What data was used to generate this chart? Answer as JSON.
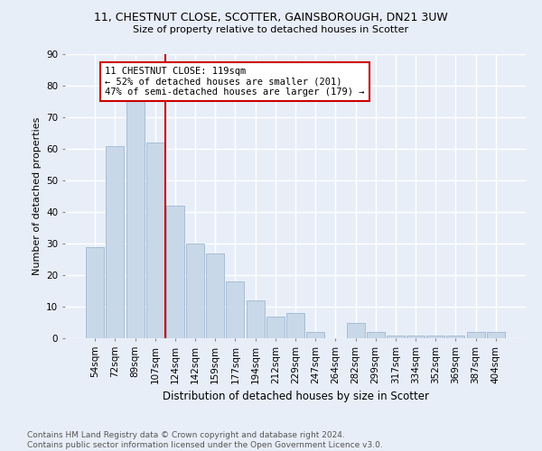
{
  "title1": "11, CHESTNUT CLOSE, SCOTTER, GAINSBOROUGH, DN21 3UW",
  "title2": "Size of property relative to detached houses in Scotter",
  "xlabel": "Distribution of detached houses by size in Scotter",
  "ylabel": "Number of detached properties",
  "categories": [
    "54sqm",
    "72sqm",
    "89sqm",
    "107sqm",
    "124sqm",
    "142sqm",
    "159sqm",
    "177sqm",
    "194sqm",
    "212sqm",
    "229sqm",
    "247sqm",
    "264sqm",
    "282sqm",
    "299sqm",
    "317sqm",
    "334sqm",
    "352sqm",
    "369sqm",
    "387sqm",
    "404sqm"
  ],
  "values": [
    29,
    61,
    76,
    62,
    42,
    30,
    27,
    18,
    12,
    7,
    8,
    2,
    0,
    5,
    2,
    1,
    1,
    1,
    1,
    2,
    2
  ],
  "bar_color": "#c8d8e8",
  "bar_edgecolor": "#a0b8d0",
  "vline_x_index": 4.0,
  "vline_color": "#cc0000",
  "annotation_line1": "11 CHESTNUT CLOSE: 119sqm",
  "annotation_line2": "← 52% of detached houses are smaller (201)",
  "annotation_line3": "47% of semi-detached houses are larger (179) →",
  "annotation_box_color": "#ffffff",
  "annotation_box_edgecolor": "#cc0000",
  "ylim": [
    0,
    90
  ],
  "yticks": [
    0,
    10,
    20,
    30,
    40,
    50,
    60,
    70,
    80,
    90
  ],
  "footer": "Contains HM Land Registry data © Crown copyright and database right 2024.\nContains public sector information licensed under the Open Government Licence v3.0.",
  "bg_color": "#e8eef8",
  "grid_color": "#ffffff",
  "title1_fontsize": 9.0,
  "title2_fontsize": 8.0,
  "xlabel_fontsize": 8.5,
  "ylabel_fontsize": 8.0,
  "tick_fontsize": 7.5,
  "annotation_fontsize": 7.5,
  "footer_fontsize": 6.5
}
